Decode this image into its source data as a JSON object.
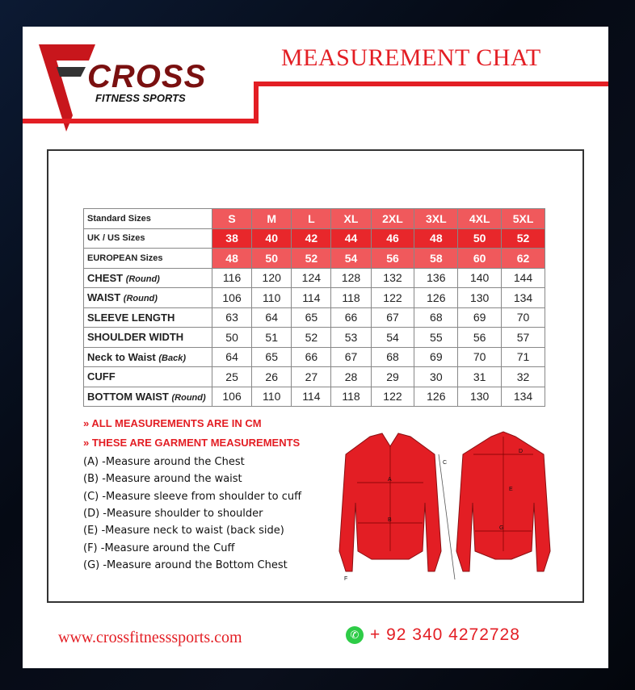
{
  "brand": {
    "name": "CROSS",
    "tagline": "FITNESS SPORTS"
  },
  "title": "MEASUREMENT CHAT",
  "table": {
    "sizes_label": "Standard Sizes",
    "sizes": [
      "S",
      "M",
      "L",
      "XL",
      "2XL",
      "3XL",
      "4XL",
      "5XL"
    ],
    "rows": [
      {
        "label": "UK / US Sizes",
        "note": "",
        "values": [
          "38",
          "40",
          "42",
          "44",
          "46",
          "48",
          "50",
          "52"
        ]
      },
      {
        "label": "EUROPEAN Sizes",
        "note": "",
        "values": [
          "48",
          "50",
          "52",
          "54",
          "56",
          "58",
          "60",
          "62"
        ]
      },
      {
        "label": "CHEST",
        "note": "(Round)",
        "values": [
          "116",
          "120",
          "124",
          "128",
          "132",
          "136",
          "140",
          "144"
        ]
      },
      {
        "label": "WAIST",
        "note": "(Round)",
        "values": [
          "106",
          "110",
          "114",
          "118",
          "122",
          "126",
          "130",
          "134"
        ]
      },
      {
        "label": "SLEEVE LENGTH",
        "note": "",
        "values": [
          "63",
          "64",
          "65",
          "66",
          "67",
          "68",
          "69",
          "70"
        ]
      },
      {
        "label": "SHOULDER WIDTH",
        "note": "",
        "values": [
          "50",
          "51",
          "52",
          "53",
          "54",
          "55",
          "56",
          "57"
        ]
      },
      {
        "label": "Neck to Waist",
        "note": "(Back)",
        "values": [
          "64",
          "65",
          "66",
          "67",
          "68",
          "69",
          "70",
          "71"
        ]
      },
      {
        "label": "CUFF",
        "note": "",
        "values": [
          "25",
          "26",
          "27",
          "28",
          "29",
          "30",
          "31",
          "32"
        ]
      },
      {
        "label": "BOTTOM WAIST",
        "note": "(Round)",
        "values": [
          "106",
          "110",
          "114",
          "118",
          "122",
          "126",
          "130",
          "134"
        ]
      }
    ]
  },
  "notes": [
    "» ALL MEASUREMENTS ARE IN CM",
    "» THESE ARE GARMENT MEASUREMENTS"
  ],
  "instructions": [
    "(A) -Measure around the Chest",
    "(B) -Measure around the waist",
    "(C) -Measure sleeve from shoulder to cuff",
    "(D) -Measure shoulder to shoulder",
    "(E) -Measure neck to waist (back side)",
    "(F) -Measure around the Cuff",
    "(G) -Measure around the Bottom Chest"
  ],
  "diagram_labels": [
    "A",
    "B",
    "C",
    "F",
    "D",
    "E",
    "G"
  ],
  "footer": {
    "website": "www.crossfitnesssports.com",
    "phone": "+ 92 340 4272728",
    "whatsapp_icon": "whatsapp-icon"
  },
  "colors": {
    "accent": "#e31e24",
    "header_light": "#f0595c",
    "header_dark": "#e8272b"
  }
}
